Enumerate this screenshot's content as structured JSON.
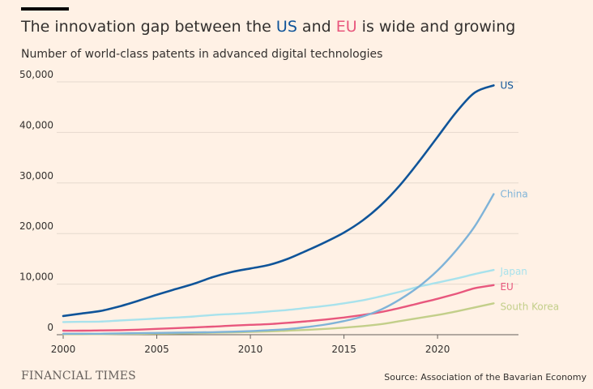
{
  "header": {
    "title_pre": "The innovation gap between the ",
    "title_us": "US",
    "title_mid": " and ",
    "title_eu": "EU",
    "title_post": " is wide and growing",
    "subtitle": "Number of world-class patents in advanced digital technologies"
  },
  "footer": {
    "brand": "FINANCIAL TIMES",
    "source": "Source: Association of the Bavarian Economy"
  },
  "chart_data": {
    "type": "line",
    "title": "The innovation gap between the US and EU is wide and growing",
    "subtitle": "Number of world-class patents in advanced digital technologies",
    "xlabel": "",
    "ylabel": "",
    "xlim": [
      2000,
      2023.5
    ],
    "ylim": [
      0,
      50000
    ],
    "x_ticks": [
      2000,
      2005,
      2010,
      2015,
      2020
    ],
    "y_ticks": [
      0,
      10000,
      20000,
      30000,
      40000,
      50000
    ],
    "y_tick_labels": [
      "0",
      "10,000",
      "20,000",
      "30,000",
      "40,000",
      "50,000"
    ],
    "grid": true,
    "legend": "direct labels at line ends",
    "x": [
      2000,
      2001,
      2002,
      2003,
      2004,
      2005,
      2006,
      2007,
      2008,
      2009,
      2010,
      2011,
      2012,
      2013,
      2014,
      2015,
      2016,
      2017,
      2018,
      2019,
      2020,
      2021,
      2022,
      2023
    ],
    "series": [
      {
        "name": "US",
        "color": "#0f5499",
        "values": [
          3700,
          4200,
          4700,
          5600,
          6700,
          7900,
          9000,
          10100,
          11400,
          12400,
          13100,
          13800,
          15000,
          16600,
          18300,
          20200,
          22600,
          25700,
          29600,
          34200,
          39100,
          44000,
          47900,
          49300
        ]
      },
      {
        "name": "China",
        "color": "#7fb3d8",
        "values": [
          200,
          200,
          200,
          250,
          300,
          350,
          400,
          450,
          500,
          600,
          700,
          900,
          1100,
          1500,
          2000,
          2700,
          3600,
          5000,
          7000,
          9500,
          12700,
          16700,
          21500,
          27800
        ]
      },
      {
        "name": "Japan",
        "color": "#a8e2ec",
        "values": [
          2500,
          2550,
          2600,
          2800,
          3000,
          3200,
          3400,
          3600,
          3900,
          4100,
          4300,
          4600,
          4900,
          5300,
          5700,
          6200,
          6800,
          7600,
          8500,
          9500,
          10300,
          11100,
          12000,
          12800
        ]
      },
      {
        "name": "EU",
        "color": "#e8577d",
        "values": [
          800,
          800,
          850,
          900,
          1000,
          1150,
          1300,
          1450,
          1600,
          1800,
          1950,
          2100,
          2350,
          2650,
          3000,
          3400,
          3900,
          4500,
          5300,
          6200,
          7100,
          8100,
          9200,
          9800
        ]
      },
      {
        "name": "South Korea",
        "color": "#c3cf8a",
        "values": [
          100,
          100,
          120,
          150,
          180,
          220,
          260,
          300,
          380,
          450,
          550,
          650,
          800,
          950,
          1150,
          1400,
          1700,
          2100,
          2700,
          3300,
          3900,
          4600,
          5400,
          6200
        ]
      }
    ]
  }
}
